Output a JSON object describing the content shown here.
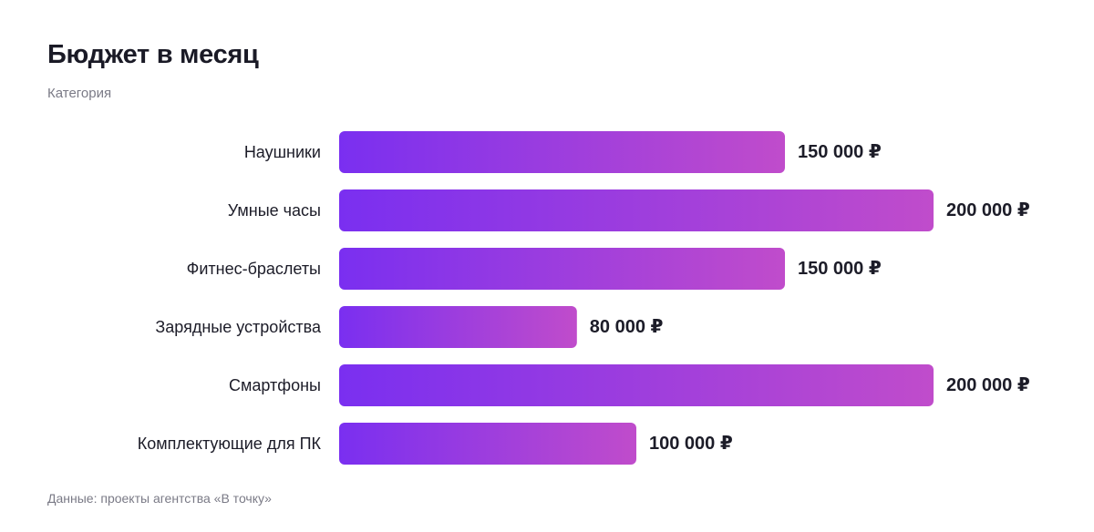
{
  "colors": {
    "bar_gradient_start": "#7a2ff0",
    "bar_gradient_end": "#c04ccb",
    "text": "#1c1c28",
    "muted": "#7a7a86"
  },
  "chart_data": {
    "type": "bar",
    "orientation": "horizontal",
    "title": "Бюджет в месяц",
    "subtitle": "Категория",
    "categories": [
      "Наушники",
      "Умные часы",
      "Фитнес-браслеты",
      "Зарядные устройства",
      "Смартфоны",
      "Комплектующие для ПК"
    ],
    "values": [
      150000,
      200000,
      150000,
      80000,
      200000,
      100000
    ],
    "value_labels": [
      "150 000 ₽",
      "200 000 ₽",
      "150 000 ₽",
      "80 000 ₽",
      "200 000 ₽",
      "100 000 ₽"
    ],
    "xlim": [
      0,
      200000
    ],
    "grid": false,
    "legend": "none"
  },
  "footer": {
    "source": "Данные: проекты агентства «В точку»"
  }
}
